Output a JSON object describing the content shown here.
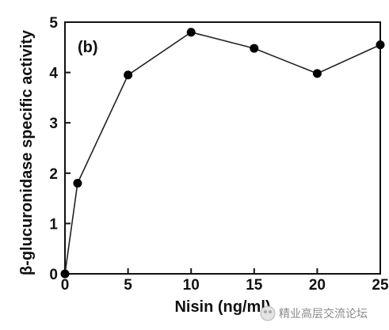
{
  "chart_data": {
    "type": "line",
    "panel_label": "(b)",
    "xlabel": "Nisin (ng/ml)",
    "ylabel": "β-glucuronidase specific activity",
    "xlim": [
      0,
      25
    ],
    "ylim": [
      0,
      5
    ],
    "xticks": [
      "0",
      "5",
      "10",
      "15",
      "20",
      "25"
    ],
    "yticks": [
      "0",
      "1",
      "2",
      "3",
      "4",
      "5"
    ],
    "grid": false,
    "legend": "none",
    "series": [
      {
        "x": [
          0,
          1,
          5,
          10,
          15,
          20,
          25
        ],
        "y": [
          0,
          1.8,
          3.95,
          4.8,
          4.48,
          3.98,
          4.55
        ]
      }
    ]
  },
  "watermark": {
    "text": "精业高层交流论坛"
  }
}
